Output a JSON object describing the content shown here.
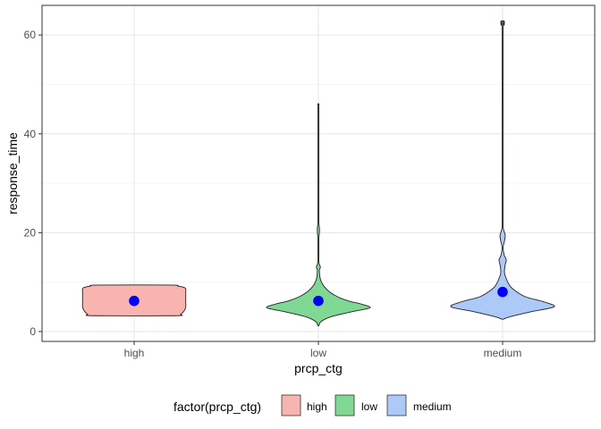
{
  "chart_data": {
    "type": "violin",
    "title": "",
    "xlabel": "prcp_ctg",
    "ylabel": "response_time",
    "categories": [
      "high",
      "low",
      "medium"
    ],
    "ylim": [
      -2,
      66
    ],
    "yticks": [
      0,
      20,
      40,
      60
    ],
    "grid": true,
    "legend": {
      "title": "factor(prcp_ctg)",
      "position": "bottom",
      "entries": [
        {
          "label": "high",
          "color": "#F8B4AE"
        },
        {
          "label": "low",
          "color": "#7FD894"
        },
        {
          "label": "medium",
          "color": "#ACC9F8"
        }
      ]
    },
    "mean_point_color": "#0000FF",
    "series": [
      {
        "category": "high",
        "mean": 6.2,
        "color": "#F8B4AE",
        "profile": [
          [
            3.2,
            0.78
          ],
          [
            3.5,
            0.9
          ],
          [
            4.2,
            0.97
          ],
          [
            5.0,
            1.0
          ],
          [
            6.0,
            1.0
          ],
          [
            7.0,
            1.0
          ],
          [
            8.0,
            1.0
          ],
          [
            8.8,
            0.99
          ],
          [
            9.2,
            0.85
          ],
          [
            9.4,
            0.7
          ]
        ]
      },
      {
        "category": "low",
        "mean": 6.2,
        "color": "#7FD894",
        "profile": [
          [
            1.2,
            0.01
          ],
          [
            2.0,
            0.05
          ],
          [
            3.0,
            0.25
          ],
          [
            4.0,
            0.65
          ],
          [
            4.8,
            1.0
          ],
          [
            5.5,
            0.85
          ],
          [
            6.2,
            0.58
          ],
          [
            7.0,
            0.38
          ],
          [
            8.0,
            0.22
          ],
          [
            9.0,
            0.12
          ],
          [
            10.0,
            0.06
          ],
          [
            11.0,
            0.03
          ],
          [
            12.5,
            0.02
          ],
          [
            13.0,
            0.04
          ],
          [
            14.0,
            0.01
          ],
          [
            16.0,
            0.008
          ],
          [
            19.0,
            0.008
          ],
          [
            20.0,
            0.02
          ],
          [
            21.0,
            0.02
          ],
          [
            22.0,
            0.008
          ],
          [
            25.0,
            0.005
          ],
          [
            26.5,
            0.01
          ],
          [
            28.5,
            0.01
          ],
          [
            30.0,
            0.005
          ],
          [
            40.0,
            0.004
          ],
          [
            45.5,
            0.004
          ],
          [
            46.0,
            0.01
          ]
        ]
      },
      {
        "category": "medium",
        "mean": 8.0,
        "color": "#ACC9F8",
        "profile": [
          [
            2.5,
            0.01
          ],
          [
            3.0,
            0.15
          ],
          [
            4.0,
            0.55
          ],
          [
            5.0,
            1.0
          ],
          [
            6.0,
            0.8
          ],
          [
            7.0,
            0.45
          ],
          [
            8.0,
            0.28
          ],
          [
            9.0,
            0.16
          ],
          [
            10.0,
            0.1
          ],
          [
            11.0,
            0.06
          ],
          [
            12.0,
            0.035
          ],
          [
            13.5,
            0.05
          ],
          [
            14.5,
            0.07
          ],
          [
            15.5,
            0.03
          ],
          [
            17.0,
            0.01
          ],
          [
            18.5,
            0.04
          ],
          [
            19.5,
            0.05
          ],
          [
            21.0,
            0.01
          ],
          [
            23.0,
            0.005
          ],
          [
            40.0,
            0.003
          ],
          [
            61.0,
            0.003
          ],
          [
            62.0,
            0.03
          ],
          [
            62.8,
            0.03
          ]
        ]
      }
    ]
  }
}
